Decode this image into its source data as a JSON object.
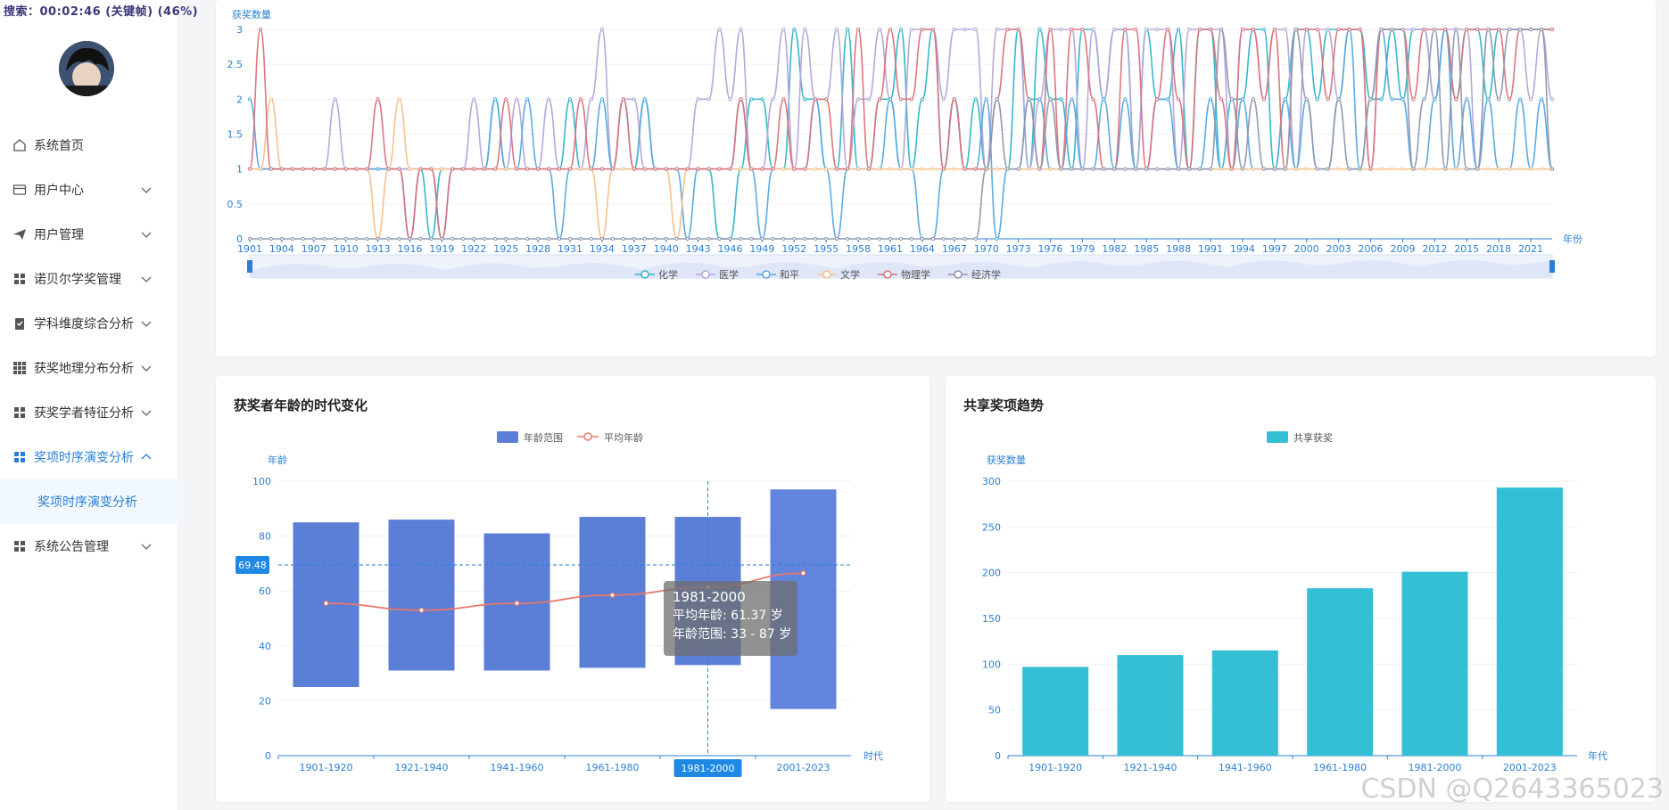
{
  "status_bar": {
    "text": "搜索：00:02:46 (关键帧) (46%)"
  },
  "sidebar": {
    "items": [
      {
        "label": "系统首页",
        "icon": "home-icon",
        "expanded": false
      },
      {
        "label": "用户中心",
        "icon": "card-icon",
        "expanded": false
      },
      {
        "label": "用户管理",
        "icon": "send-icon",
        "expanded": false
      },
      {
        "label": "诺贝尔学奖管理",
        "icon": "grid-icon",
        "expanded": false
      },
      {
        "label": "学科维度综合分析",
        "icon": "clipboard-icon",
        "expanded": false
      },
      {
        "label": "获奖地理分布分析",
        "icon": "apps-icon",
        "expanded": false
      },
      {
        "label": "获奖学者特征分析",
        "icon": "grid-icon",
        "expanded": false
      },
      {
        "label": "奖项时序演变分析",
        "icon": "grid-icon",
        "expanded": true
      },
      {
        "label": "系统公告管理",
        "icon": "grid-icon",
        "expanded": false
      }
    ],
    "sub_item": "奖项时序演变分析"
  },
  "colors": {
    "accent": "#2a7fd4",
    "bar_blue": "#5b7fd6",
    "bar_teal": "#33bfd4",
    "line_red": "#e8786a"
  },
  "chart_data": [
    {
      "type": "line",
      "title": "",
      "ylabel": "获奖数量",
      "xlabel": "年份",
      "ylim": [
        0,
        3
      ],
      "y_ticks": [
        "0",
        "0.5",
        "1",
        "1.5",
        "2",
        "2.5",
        "3"
      ],
      "x_ticks": [
        "1901",
        "1904",
        "1907",
        "1910",
        "1913",
        "1916",
        "1919",
        "1922",
        "1925",
        "1928",
        "1931",
        "1934",
        "1937",
        "1940",
        "1943",
        "1946",
        "1949",
        "1952",
        "1955",
        "1958",
        "1961",
        "1964",
        "1967",
        "1970",
        "1973",
        "1976",
        "1979",
        "1982",
        "1985",
        "1988",
        "1991",
        "1994",
        "1997",
        "2000",
        "2003",
        "2006",
        "2009",
        "2012",
        "2015",
        "2018",
        "2021"
      ],
      "x_range": [
        1901,
        2023
      ],
      "series": [
        {
          "name": "化学",
          "color": "#2fb5c9",
          "values": [
            1,
            1,
            1,
            1,
            1,
            1,
            1,
            1,
            1,
            1,
            1,
            1,
            1,
            1,
            1,
            1,
            1,
            0,
            1,
            1,
            1,
            1,
            1,
            2,
            1,
            1,
            1,
            1,
            1,
            1,
            2,
            1,
            1,
            1,
            1,
            2,
            1,
            2,
            1,
            1,
            1,
            1,
            1,
            1,
            0,
            0,
            1,
            2,
            2,
            1,
            1,
            3,
            2,
            2,
            1,
            1,
            3,
            1,
            1,
            2,
            2,
            3,
            1,
            2,
            3,
            1,
            2,
            1,
            2,
            1,
            1,
            1,
            3,
            1,
            3,
            2,
            2,
            1,
            3,
            3,
            2,
            3,
            3,
            1,
            3,
            2,
            2,
            3,
            1,
            3,
            3,
            1,
            2,
            2,
            3,
            3,
            1,
            2,
            3,
            3,
            2,
            3,
            3,
            3,
            3,
            2,
            2,
            3,
            2,
            3,
            3,
            2,
            3,
            2,
            3,
            3,
            2,
            3,
            3,
            3,
            3,
            3,
            3
          ]
        },
        {
          "name": "医学",
          "color": "#b3a5d8",
          "values": [
            1,
            1,
            1,
            1,
            1,
            1,
            1,
            1,
            2,
            1,
            1,
            1,
            1,
            1,
            1,
            1,
            1,
            1,
            1,
            1,
            1,
            2,
            1,
            1,
            1,
            2,
            1,
            1,
            2,
            1,
            1,
            1,
            2,
            3,
            1,
            2,
            2,
            1,
            1,
            1,
            1,
            1,
            2,
            2,
            3,
            2,
            3,
            1,
            1,
            2,
            3,
            1,
            3,
            2,
            2,
            3,
            1,
            2,
            2,
            3,
            2,
            1,
            3,
            3,
            3,
            2,
            3,
            3,
            3,
            1,
            3,
            3,
            3,
            1,
            2,
            3,
            3,
            3,
            1,
            3,
            2,
            3,
            3,
            1,
            3,
            3,
            3,
            1,
            3,
            3,
            3,
            3,
            1,
            3,
            3,
            2,
            3,
            3,
            1,
            3,
            3,
            3,
            2,
            3,
            3,
            1,
            3,
            3,
            3,
            3,
            3,
            2,
            3,
            3,
            3,
            1,
            3,
            3,
            3,
            3,
            2,
            3,
            2
          ]
        },
        {
          "name": "和平",
          "color": "#56a8e0",
          "values": [
            2,
            1,
            1,
            1,
            1,
            1,
            1,
            1,
            1,
            1,
            1,
            1,
            1,
            1,
            1,
            0,
            1,
            1,
            0,
            1,
            1,
            1,
            1,
            2,
            1,
            1,
            2,
            1,
            1,
            0,
            1,
            1,
            1,
            2,
            1,
            1,
            1,
            2,
            1,
            1,
            1,
            0,
            1,
            1,
            1,
            1,
            2,
            1,
            0,
            1,
            1,
            1,
            1,
            2,
            1,
            0,
            1,
            1,
            1,
            1,
            2,
            1,
            1,
            0,
            0,
            1,
            2,
            1,
            1,
            2,
            0,
            1,
            1,
            2,
            2,
            1,
            1,
            2,
            1,
            1,
            2,
            1,
            2,
            1,
            1,
            2,
            2,
            1,
            1,
            1,
            2,
            1,
            1,
            2,
            1,
            1,
            1,
            2,
            1,
            2,
            1,
            1,
            2,
            3,
            1,
            2,
            3,
            2,
            2,
            1,
            1,
            2,
            3,
            1,
            2,
            1,
            2,
            1,
            1,
            2,
            1,
            2,
            1
          ]
        },
        {
          "name": "文学",
          "color": "#f6c08a",
          "values": [
            1,
            1,
            2,
            1,
            1,
            1,
            1,
            1,
            1,
            1,
            1,
            1,
            0,
            1,
            2,
            1,
            1,
            1,
            1,
            1,
            1,
            1,
            1,
            1,
            1,
            1,
            1,
            1,
            1,
            1,
            1,
            1,
            1,
            0,
            1,
            1,
            1,
            1,
            1,
            1,
            0,
            1,
            1,
            1,
            1,
            1,
            1,
            1,
            1,
            1,
            1,
            1,
            1,
            1,
            1,
            1,
            1,
            1,
            1,
            1,
            1,
            1,
            1,
            1,
            1,
            1,
            1,
            1,
            1,
            1,
            1,
            1,
            1,
            1,
            1,
            1,
            1,
            1,
            1,
            1,
            1,
            1,
            1,
            1,
            1,
            1,
            1,
            1,
            1,
            1,
            1,
            1,
            1,
            1,
            1,
            1,
            1,
            1,
            1,
            1,
            1,
            1,
            1,
            1,
            1,
            1,
            1,
            1,
            1,
            1,
            1,
            1,
            1,
            1,
            1,
            1,
            1,
            1,
            1,
            1,
            1,
            1,
            1
          ]
        },
        {
          "name": "物理学",
          "color": "#d9727a",
          "values": [
            1,
            3,
            1,
            1,
            1,
            1,
            1,
            1,
            1,
            1,
            1,
            1,
            2,
            1,
            1,
            0,
            1,
            1,
            0,
            1,
            1,
            1,
            1,
            1,
            2,
            1,
            1,
            1,
            1,
            1,
            1,
            2,
            1,
            1,
            1,
            2,
            1,
            1,
            1,
            1,
            1,
            1,
            1,
            1,
            1,
            1,
            2,
            1,
            1,
            1,
            2,
            1,
            1,
            2,
            2,
            1,
            1,
            3,
            1,
            2,
            3,
            2,
            2,
            3,
            3,
            1,
            2,
            1,
            1,
            1,
            2,
            3,
            3,
            2,
            1,
            3,
            1,
            3,
            3,
            2,
            1,
            1,
            3,
            3,
            1,
            2,
            3,
            2,
            1,
            3,
            3,
            2,
            1,
            3,
            3,
            2,
            3,
            1,
            3,
            3,
            3,
            2,
            3,
            3,
            3,
            1,
            3,
            3,
            3,
            2,
            3,
            3,
            3,
            2,
            3,
            3,
            3,
            3,
            2,
            3,
            3,
            3,
            3
          ]
        },
        {
          "name": "经济学",
          "color": "#8e97ac",
          "values": [
            0,
            0,
            0,
            0,
            0,
            0,
            0,
            0,
            0,
            0,
            0,
            0,
            0,
            0,
            0,
            0,
            0,
            0,
            0,
            0,
            0,
            0,
            0,
            0,
            0,
            0,
            0,
            0,
            0,
            0,
            0,
            0,
            0,
            0,
            0,
            0,
            0,
            0,
            0,
            0,
            0,
            0,
            0,
            0,
            0,
            0,
            0,
            0,
            0,
            0,
            0,
            0,
            0,
            0,
            0,
            0,
            0,
            0,
            0,
            0,
            0,
            0,
            0,
            0,
            0,
            0,
            0,
            0,
            0,
            1,
            2,
            1,
            1,
            2,
            1,
            2,
            1,
            1,
            1,
            1,
            1,
            1,
            1,
            1,
            1,
            1,
            1,
            1,
            1,
            1,
            1,
            3,
            2,
            1,
            2,
            1,
            1,
            1,
            3,
            2,
            1,
            1,
            2,
            1,
            1,
            2,
            3,
            3,
            3,
            1,
            2,
            3,
            1,
            3,
            1,
            1,
            3,
            2,
            3,
            3,
            3,
            3,
            1
          ]
        }
      ]
    },
    {
      "type": "bar",
      "title": "获奖者年龄的时代变化",
      "ylabel": "年龄",
      "xlabel": "时代",
      "ylim": [
        0,
        100
      ],
      "y_ticks": [
        "0",
        "20",
        "40",
        "60",
        "80",
        "100"
      ],
      "categories": [
        "1901-1920",
        "1921-1940",
        "1941-1960",
        "1961-1980",
        "1981-2000",
        "2001-2023"
      ],
      "legend": [
        "年龄范围",
        "平均年龄"
      ],
      "series": [
        {
          "name": "年龄范围",
          "type": "range",
          "low": [
            25,
            31,
            31,
            32,
            33,
            17
          ],
          "high": [
            85,
            86,
            81,
            87,
            87,
            97
          ]
        },
        {
          "name": "平均年龄",
          "type": "line",
          "values": [
            55.5,
            53,
            55.5,
            58.5,
            61.37,
            66.5
          ]
        }
      ],
      "crosshair": {
        "y_label": "69.48",
        "x_label": "1981-2000"
      },
      "tooltip": {
        "title": "1981-2000",
        "avg_line": "平均年龄: 61.37 岁",
        "range_line": "年龄范围: 33 - 87 岁"
      }
    },
    {
      "type": "bar",
      "title": "共享奖项趋势",
      "ylabel": "获奖数量",
      "xlabel": "年代",
      "ylim": [
        0,
        300
      ],
      "y_ticks": [
        "0",
        "50",
        "100",
        "150",
        "200",
        "250",
        "300"
      ],
      "categories": [
        "1901-1920",
        "1921-1940",
        "1941-1960",
        "1961-1980",
        "1981-2000",
        "2001-2023"
      ],
      "legend": [
        "共享获奖"
      ],
      "series": [
        {
          "name": "共享获奖",
          "values": [
            97,
            110,
            115,
            183,
            201,
            293
          ]
        }
      ]
    }
  ],
  "watermark": "CSDN @Q2643365023"
}
